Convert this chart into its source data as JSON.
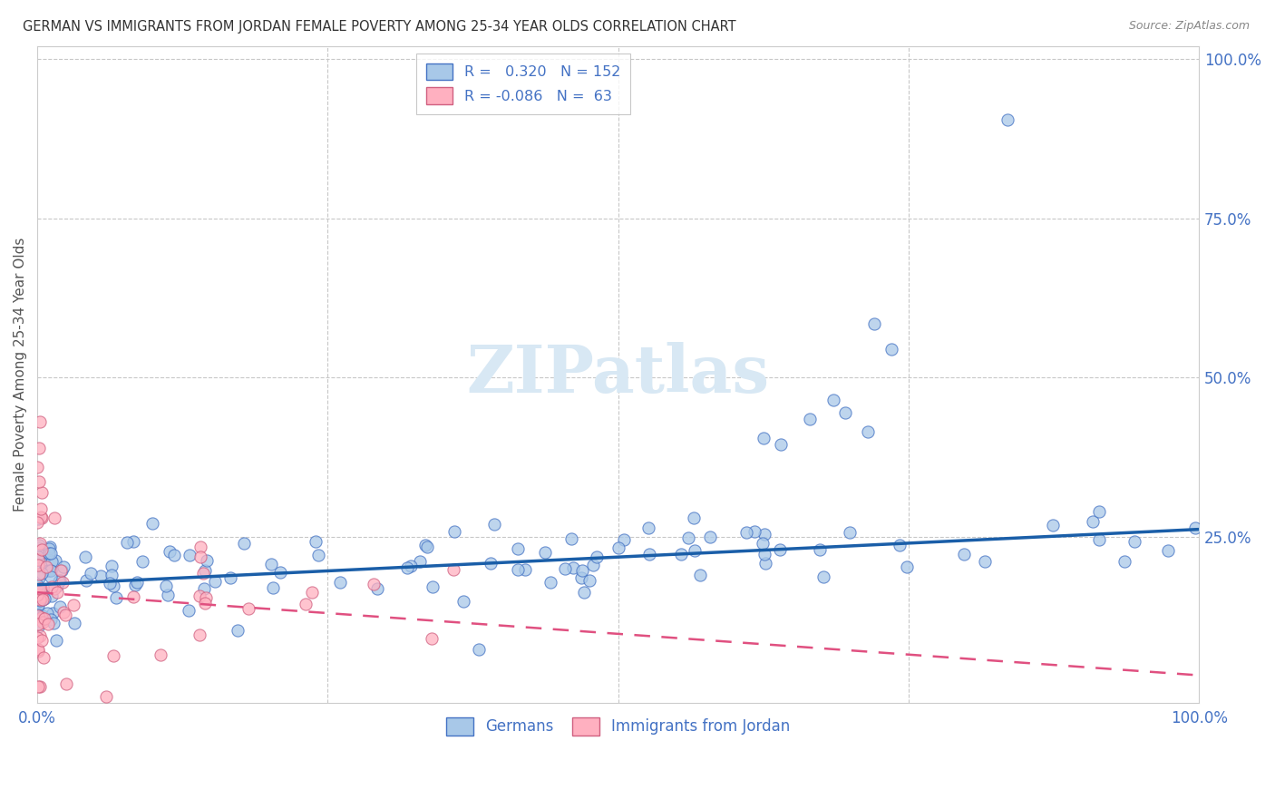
{
  "title": "GERMAN VS IMMIGRANTS FROM JORDAN FEMALE POVERTY AMONG 25-34 YEAR OLDS CORRELATION CHART",
  "source": "Source: ZipAtlas.com",
  "ylabel": "Female Poverty Among 25-34 Year Olds",
  "xlim": [
    0.0,
    1.0
  ],
  "ylim": [
    0.0,
    1.0
  ],
  "blue_R": 0.32,
  "blue_N": 152,
  "pink_R": -0.086,
  "pink_N": 63,
  "blue_color": "#a8c8e8",
  "pink_color": "#ffb0c0",
  "blue_edge_color": "#4472c4",
  "pink_edge_color": "#d06080",
  "blue_line_color": "#1a5ea8",
  "pink_line_color": "#e05080",
  "watermark_color": "#d8e8f4",
  "background_color": "#ffffff",
  "grid_color": "#c8c8c8",
  "title_color": "#333333",
  "axis_tick_color": "#4472c4",
  "ylabel_color": "#555555"
}
